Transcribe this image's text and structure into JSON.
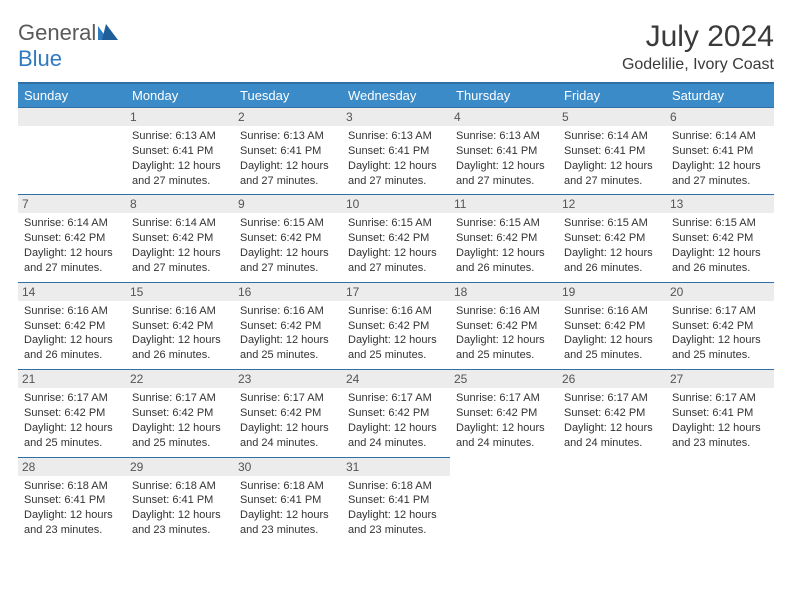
{
  "logo": {
    "word1": "General",
    "word2": "Blue"
  },
  "title": "July 2024",
  "location": "Godelilie, Ivory Coast",
  "colors": {
    "header_bg": "#3b8bc9",
    "header_border": "#2f6fa3",
    "daynum_bg": "#ececec",
    "logo_gray": "#5a5a5a",
    "logo_blue": "#2f7bbf"
  },
  "weekday_labels": [
    "Sunday",
    "Monday",
    "Tuesday",
    "Wednesday",
    "Thursday",
    "Friday",
    "Saturday"
  ],
  "weeks": [
    [
      {
        "blank": true
      },
      {
        "day": "1",
        "sunrise": "Sunrise: 6:13 AM",
        "sunset": "Sunset: 6:41 PM",
        "daylight": "Daylight: 12 hours and 27 minutes."
      },
      {
        "day": "2",
        "sunrise": "Sunrise: 6:13 AM",
        "sunset": "Sunset: 6:41 PM",
        "daylight": "Daylight: 12 hours and 27 minutes."
      },
      {
        "day": "3",
        "sunrise": "Sunrise: 6:13 AM",
        "sunset": "Sunset: 6:41 PM",
        "daylight": "Daylight: 12 hours and 27 minutes."
      },
      {
        "day": "4",
        "sunrise": "Sunrise: 6:13 AM",
        "sunset": "Sunset: 6:41 PM",
        "daylight": "Daylight: 12 hours and 27 minutes."
      },
      {
        "day": "5",
        "sunrise": "Sunrise: 6:14 AM",
        "sunset": "Sunset: 6:41 PM",
        "daylight": "Daylight: 12 hours and 27 minutes."
      },
      {
        "day": "6",
        "sunrise": "Sunrise: 6:14 AM",
        "sunset": "Sunset: 6:41 PM",
        "daylight": "Daylight: 12 hours and 27 minutes."
      }
    ],
    [
      {
        "day": "7",
        "sunrise": "Sunrise: 6:14 AM",
        "sunset": "Sunset: 6:42 PM",
        "daylight": "Daylight: 12 hours and 27 minutes."
      },
      {
        "day": "8",
        "sunrise": "Sunrise: 6:14 AM",
        "sunset": "Sunset: 6:42 PM",
        "daylight": "Daylight: 12 hours and 27 minutes."
      },
      {
        "day": "9",
        "sunrise": "Sunrise: 6:15 AM",
        "sunset": "Sunset: 6:42 PM",
        "daylight": "Daylight: 12 hours and 27 minutes."
      },
      {
        "day": "10",
        "sunrise": "Sunrise: 6:15 AM",
        "sunset": "Sunset: 6:42 PM",
        "daylight": "Daylight: 12 hours and 27 minutes."
      },
      {
        "day": "11",
        "sunrise": "Sunrise: 6:15 AM",
        "sunset": "Sunset: 6:42 PM",
        "daylight": "Daylight: 12 hours and 26 minutes."
      },
      {
        "day": "12",
        "sunrise": "Sunrise: 6:15 AM",
        "sunset": "Sunset: 6:42 PM",
        "daylight": "Daylight: 12 hours and 26 minutes."
      },
      {
        "day": "13",
        "sunrise": "Sunrise: 6:15 AM",
        "sunset": "Sunset: 6:42 PM",
        "daylight": "Daylight: 12 hours and 26 minutes."
      }
    ],
    [
      {
        "day": "14",
        "sunrise": "Sunrise: 6:16 AM",
        "sunset": "Sunset: 6:42 PM",
        "daylight": "Daylight: 12 hours and 26 minutes."
      },
      {
        "day": "15",
        "sunrise": "Sunrise: 6:16 AM",
        "sunset": "Sunset: 6:42 PM",
        "daylight": "Daylight: 12 hours and 26 minutes."
      },
      {
        "day": "16",
        "sunrise": "Sunrise: 6:16 AM",
        "sunset": "Sunset: 6:42 PM",
        "daylight": "Daylight: 12 hours and 25 minutes."
      },
      {
        "day": "17",
        "sunrise": "Sunrise: 6:16 AM",
        "sunset": "Sunset: 6:42 PM",
        "daylight": "Daylight: 12 hours and 25 minutes."
      },
      {
        "day": "18",
        "sunrise": "Sunrise: 6:16 AM",
        "sunset": "Sunset: 6:42 PM",
        "daylight": "Daylight: 12 hours and 25 minutes."
      },
      {
        "day": "19",
        "sunrise": "Sunrise: 6:16 AM",
        "sunset": "Sunset: 6:42 PM",
        "daylight": "Daylight: 12 hours and 25 minutes."
      },
      {
        "day": "20",
        "sunrise": "Sunrise: 6:17 AM",
        "sunset": "Sunset: 6:42 PM",
        "daylight": "Daylight: 12 hours and 25 minutes."
      }
    ],
    [
      {
        "day": "21",
        "sunrise": "Sunrise: 6:17 AM",
        "sunset": "Sunset: 6:42 PM",
        "daylight": "Daylight: 12 hours and 25 minutes."
      },
      {
        "day": "22",
        "sunrise": "Sunrise: 6:17 AM",
        "sunset": "Sunset: 6:42 PM",
        "daylight": "Daylight: 12 hours and 25 minutes."
      },
      {
        "day": "23",
        "sunrise": "Sunrise: 6:17 AM",
        "sunset": "Sunset: 6:42 PM",
        "daylight": "Daylight: 12 hours and 24 minutes."
      },
      {
        "day": "24",
        "sunrise": "Sunrise: 6:17 AM",
        "sunset": "Sunset: 6:42 PM",
        "daylight": "Daylight: 12 hours and 24 minutes."
      },
      {
        "day": "25",
        "sunrise": "Sunrise: 6:17 AM",
        "sunset": "Sunset: 6:42 PM",
        "daylight": "Daylight: 12 hours and 24 minutes."
      },
      {
        "day": "26",
        "sunrise": "Sunrise: 6:17 AM",
        "sunset": "Sunset: 6:42 PM",
        "daylight": "Daylight: 12 hours and 24 minutes."
      },
      {
        "day": "27",
        "sunrise": "Sunrise: 6:17 AM",
        "sunset": "Sunset: 6:41 PM",
        "daylight": "Daylight: 12 hours and 23 minutes."
      }
    ],
    [
      {
        "day": "28",
        "sunrise": "Sunrise: 6:18 AM",
        "sunset": "Sunset: 6:41 PM",
        "daylight": "Daylight: 12 hours and 23 minutes."
      },
      {
        "day": "29",
        "sunrise": "Sunrise: 6:18 AM",
        "sunset": "Sunset: 6:41 PM",
        "daylight": "Daylight: 12 hours and 23 minutes."
      },
      {
        "day": "30",
        "sunrise": "Sunrise: 6:18 AM",
        "sunset": "Sunset: 6:41 PM",
        "daylight": "Daylight: 12 hours and 23 minutes."
      },
      {
        "day": "31",
        "sunrise": "Sunrise: 6:18 AM",
        "sunset": "Sunset: 6:41 PM",
        "daylight": "Daylight: 12 hours and 23 minutes."
      },
      {
        "blank": true
      },
      {
        "blank": true
      },
      {
        "blank": true
      }
    ]
  ]
}
